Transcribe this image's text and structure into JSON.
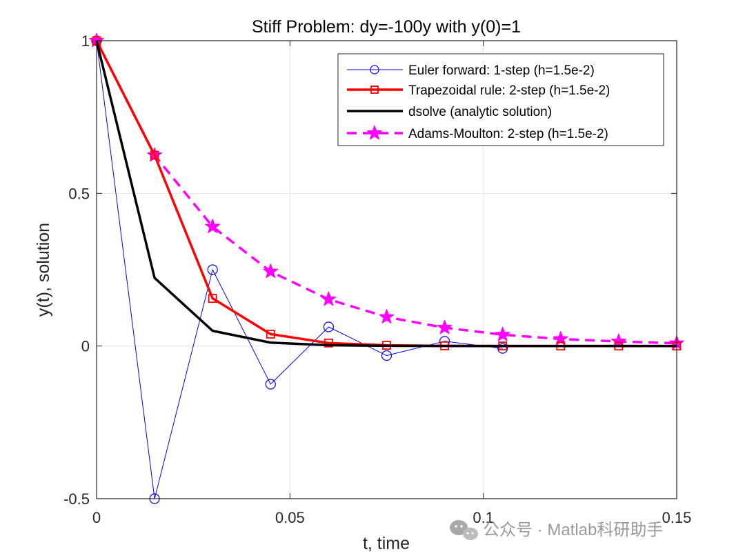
{
  "chart_data": {
    "type": "line",
    "title": "Stiff Problem: dy=-100y with y(0)=1",
    "xlabel": "t, time",
    "ylabel": "y(t), solution",
    "xlim": [
      0,
      0.15
    ],
    "ylim": [
      -0.5,
      1
    ],
    "grid": true,
    "legend_position": "top-right",
    "x_ticks": [
      {
        "value": 0,
        "label": "0"
      },
      {
        "value": 0.05,
        "label": "0.05"
      },
      {
        "value": 0.1,
        "label": "0.1"
      },
      {
        "value": 0.15,
        "label": "0.15"
      }
    ],
    "y_ticks": [
      {
        "value": -0.5,
        "label": "-0.5"
      },
      {
        "value": 0,
        "label": "0"
      },
      {
        "value": 0.5,
        "label": "0.5"
      },
      {
        "value": 1,
        "label": "1"
      }
    ],
    "series": [
      {
        "name": "Euler forward: 1-step (h=1.5e-2)",
        "color": "#0000ff",
        "line_style": "solid",
        "line_weight": "thin",
        "marker": "circle",
        "x": [
          0,
          0.015,
          0.03,
          0.045,
          0.06,
          0.075,
          0.09,
          0.105
        ],
        "y": [
          1,
          -0.5,
          0.25,
          -0.125,
          0.0625,
          -0.0313,
          0.0156,
          -0.0078
        ]
      },
      {
        "name": "Trapezoidal rule: 2-step (h=1.5e-2)",
        "color": "#ff0000",
        "line_style": "solid",
        "line_weight": "thick",
        "marker": "square",
        "x": [
          0,
          0.015,
          0.03,
          0.045,
          0.06,
          0.075,
          0.09,
          0.105,
          0.12,
          0.135,
          0.15
        ],
        "y": [
          1,
          0.625,
          0.156,
          0.039,
          0.0098,
          0.0024,
          0.0006,
          0.0002,
          0,
          0,
          0
        ]
      },
      {
        "name": "dsolve (analytic solution)",
        "color": "#000000",
        "line_style": "solid",
        "line_weight": "thick",
        "marker": "none",
        "x": [
          0,
          0.015,
          0.03,
          0.045,
          0.06,
          0.075,
          0.09,
          0.105,
          0.12,
          0.135,
          0.15
        ],
        "y": [
          1,
          0.223,
          0.0498,
          0.0111,
          0.0025,
          0.0006,
          0.0001,
          0,
          0,
          0,
          0
        ]
      },
      {
        "name": "Adams-Moulton: 2-step (h=1.5e-2)",
        "color": "#ff00ff",
        "line_style": "dashed",
        "line_weight": "thick",
        "marker": "star",
        "x": [
          0,
          0.015,
          0.03,
          0.045,
          0.06,
          0.075,
          0.09,
          0.105,
          0.12,
          0.135,
          0.15
        ],
        "y": [
          1,
          0.625,
          0.391,
          0.244,
          0.153,
          0.095,
          0.06,
          0.037,
          0.023,
          0.015,
          0.009
        ]
      }
    ]
  },
  "watermark": {
    "text": "公众号 · Matlab科研助手",
    "icon": "wechat-icon"
  }
}
